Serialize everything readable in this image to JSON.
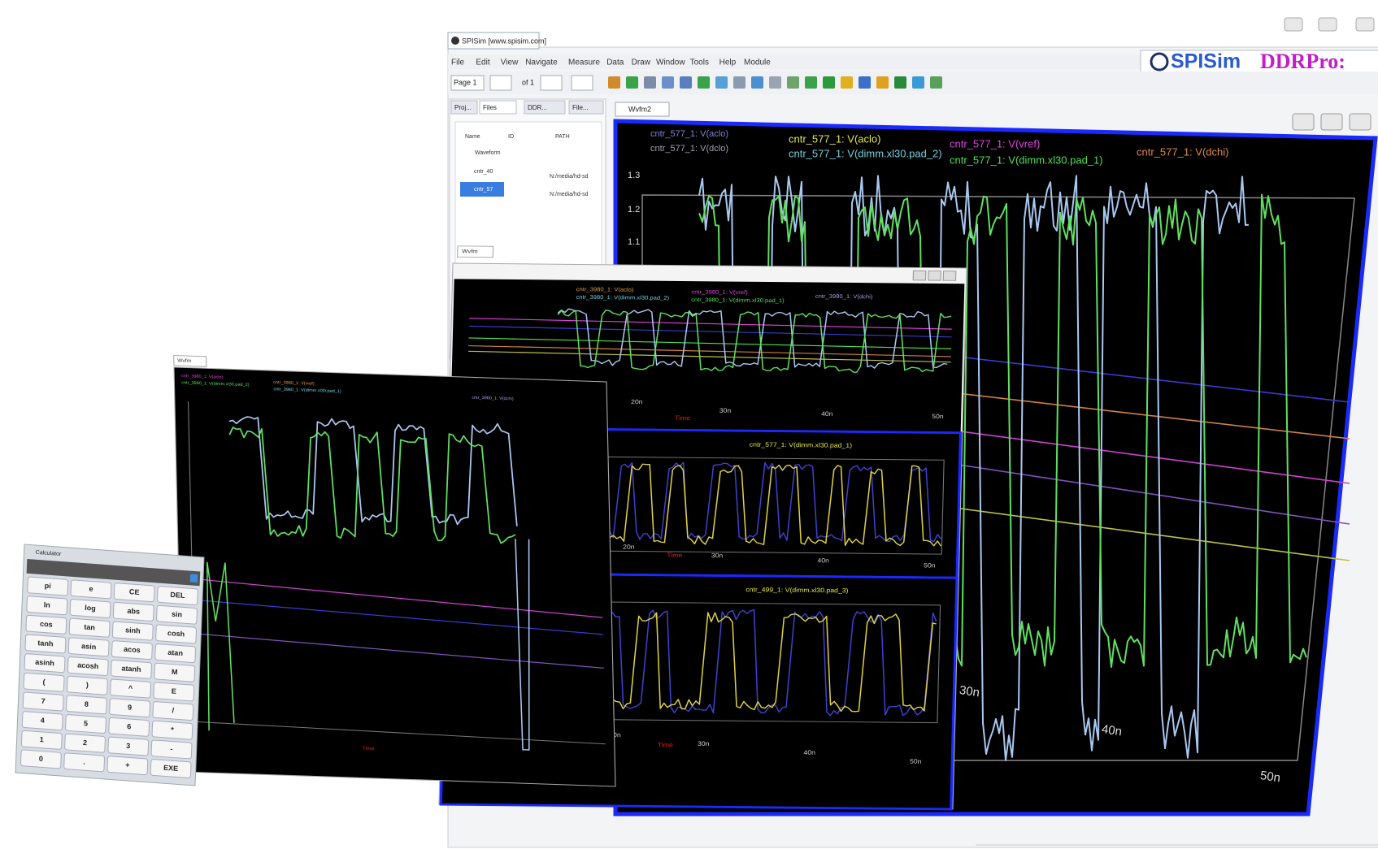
{
  "main_window": {
    "title": "SPISim [www.spisim.com]",
    "menu": [
      "File",
      "Edit",
      "View",
      "Navigate",
      "Measure",
      "Data",
      "Draw",
      "Window",
      "Tools",
      "Help",
      "Module"
    ],
    "brand": {
      "name": "SPISim",
      "product": "DDRPro:"
    },
    "toolbar": {
      "page": "Page 1",
      "of": "of 1"
    },
    "side_tabs": [
      "Proj...",
      "Files",
      "DDR...",
      "File..."
    ],
    "tree": {
      "columns": [
        "Name",
        "ID",
        "PATH"
      ],
      "root": "Waveform",
      "items": [
        {
          "name": "cntr_40",
          "path": "N:/media/hd-sd"
        },
        {
          "name": "cntr_57",
          "path": "N:/media/hd-sd"
        }
      ]
    },
    "doc_tab": "Wvfm2",
    "plot": {
      "legend": [
        "cntr_577_1: V(aclo)",
        "cntr_577_1: V(dclo)",
        "cntr_577_1: V(aclo)",
        "cntr_577_1: V(dimm.xl30.pad_2)",
        "cntr_577_1: V(vref)",
        "cntr_577_1: V(dimm.xl30.pad_1)",
        "cntr_577_1: V(dchi)"
      ],
      "yticks": [
        "1.3",
        "1.2",
        "1.1"
      ],
      "xticks": [
        "30n",
        "40n",
        "50n"
      ]
    }
  },
  "middle_window": {
    "tab": "Wvfm",
    "legend": [
      "cntr_3980_1: V(aclo)",
      "cntr_3980_1: V(dimm.xl30.pad_2)",
      "cntr_3980_1: V(vref)",
      "cntr_3980_1: V(dimm.xl30.pad_1)",
      "cntr_3980_1: V(dchi)"
    ],
    "panel2_title": "cntr_577_1: V(dimm.xl30.pad_1)",
    "panel3_title": "cntr_499_1: V(dimm.xl30.pad_3)",
    "xticks": [
      "20n",
      "30n",
      "40n",
      "50n"
    ],
    "xlabel": "Time"
  },
  "left_window": {
    "tab": "Wvfm",
    "legend": [
      "cntr_3980_1: V(aclo)",
      "cntr_3980_1: V(dimm.xl30.pad_2)",
      "cntr_3980_1: V(vref)",
      "cntr_3980_1: V(dimm.xl30.pad_1)",
      "cntr_3980_1: V(dchi)"
    ],
    "xlabel": "Time"
  },
  "calculator": {
    "title": "Calculator",
    "buttons": [
      "pi",
      "e",
      "CE",
      "DEL",
      "ln",
      "log",
      "abs",
      "sin",
      "cos",
      "tan",
      "sinh",
      "cosh",
      "tanh",
      "asin",
      "acos",
      "atan",
      "asinh",
      "acosh",
      "atanh",
      "M",
      "(",
      ")",
      "^",
      "E",
      "7",
      "8",
      "9",
      "/",
      "4",
      "5",
      "6",
      "*",
      "1",
      "2",
      "3",
      "-",
      "0",
      ".",
      "+",
      "EXE"
    ]
  }
}
